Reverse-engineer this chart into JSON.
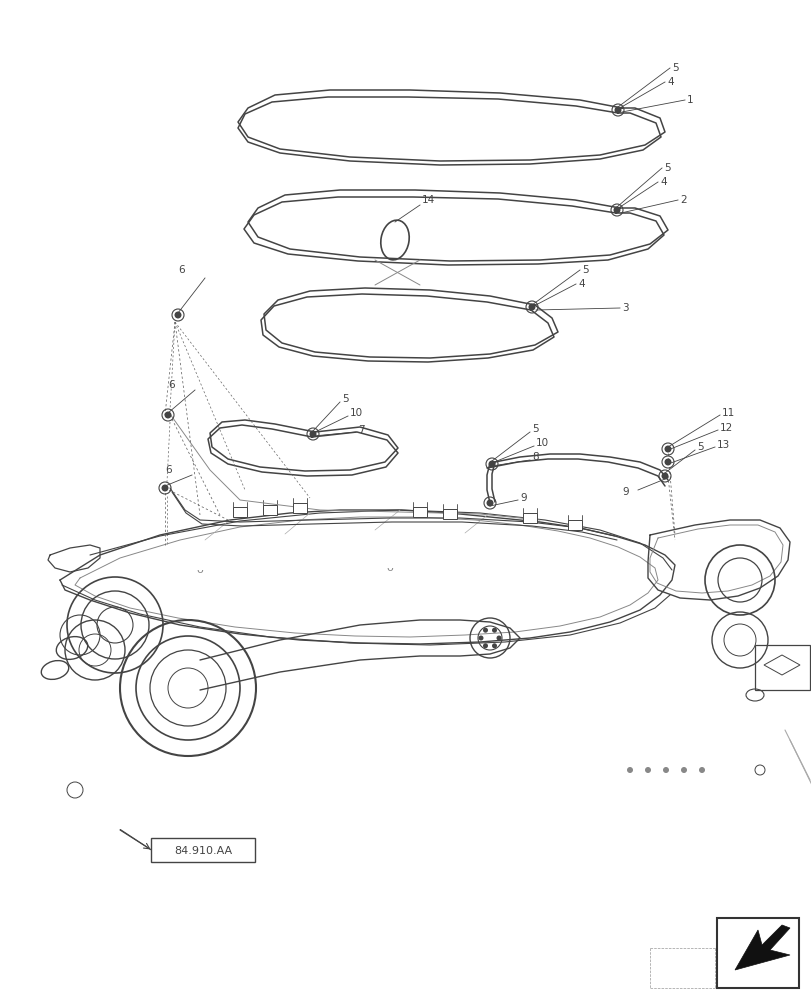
{
  "background_color": "#ffffff",
  "line_color": "#444444",
  "label_fontsize": 7.5,
  "ref_label": "84.910.AA",
  "nav_arrow_color": "#111111"
}
